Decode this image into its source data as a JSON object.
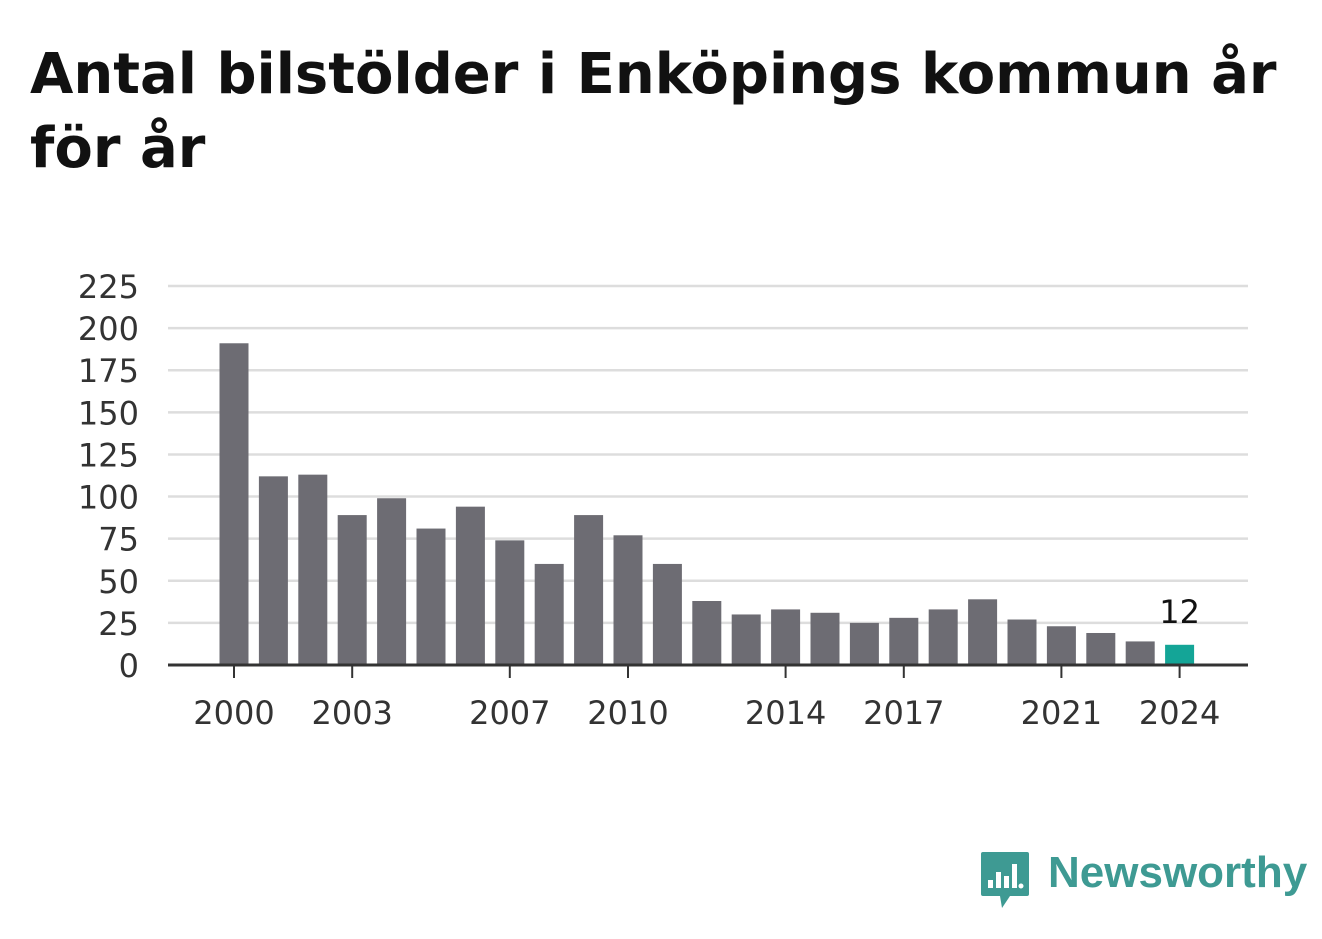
{
  "title": "Antal bilstölder i Enköpings kommun år för år",
  "logo": {
    "text": "Newsworthy",
    "icon": "newsworthy-logo-icon",
    "color": "#3e9a93"
  },
  "chart_data": {
    "type": "bar",
    "categories": [
      "2000",
      "2001",
      "2002",
      "2003",
      "2004",
      "2005",
      "2006",
      "2007",
      "2008",
      "2009",
      "2010",
      "2011",
      "2012",
      "2013",
      "2014",
      "2015",
      "2016",
      "2017",
      "2018",
      "2019",
      "2020",
      "2021",
      "2022",
      "2023",
      "2024"
    ],
    "values": [
      191,
      112,
      113,
      89,
      99,
      81,
      94,
      74,
      60,
      89,
      77,
      60,
      38,
      30,
      33,
      31,
      25,
      28,
      33,
      39,
      27,
      23,
      19,
      14,
      12
    ],
    "x_tick_labels": [
      "2000",
      "2003",
      "2007",
      "2010",
      "2014",
      "2017",
      "2021",
      "2024"
    ],
    "y_ticks": [
      0,
      25,
      50,
      75,
      100,
      125,
      150,
      175,
      200,
      225
    ],
    "ylim": [
      0,
      225
    ],
    "grid": true,
    "annotation": {
      "category": "2024",
      "text": "12"
    },
    "colors": {
      "bar": "#6d6c73",
      "highlight": "#14a597",
      "grid": "#dddddd",
      "axis": "#333333"
    },
    "highlight_category": "2024"
  }
}
